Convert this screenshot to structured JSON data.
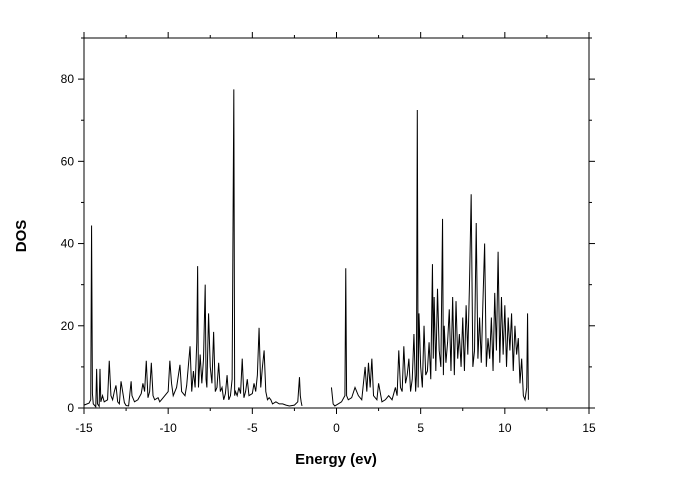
{
  "chart_data": {
    "type": "line",
    "xlabel": "Energy  (ev)",
    "ylabel": "DOS",
    "xlim": [
      -15,
      15
    ],
    "ylim": [
      0,
      90
    ],
    "xticks": [
      -15,
      -10,
      -5,
      0,
      5,
      10,
      15
    ],
    "yticks": [
      0,
      20,
      40,
      60,
      80
    ],
    "grid": false,
    "series": [
      {
        "x": [
          -15.0,
          -14.7,
          -14.6,
          -14.55,
          -14.5,
          -14.45,
          -14.3,
          -14.25,
          -14.2,
          -14.1,
          -14.05,
          -14.0,
          -13.9,
          -13.8,
          -13.6,
          -13.5,
          -13.4,
          -13.3,
          -13.2,
          -13.1,
          -13.0,
          -12.9,
          -12.8,
          -12.6,
          -12.5,
          -12.35,
          -12.3,
          -12.2,
          -12.15,
          -12.0,
          -11.8,
          -11.6,
          -11.5,
          -11.4,
          -11.3,
          -11.2,
          -11.1,
          -11.0,
          -10.9,
          -10.8,
          -10.6,
          -10.5,
          -10.4,
          -10.2,
          -10.0,
          -9.9,
          -9.8,
          -9.7,
          -9.5,
          -9.3,
          -9.2,
          -9.0,
          -8.9,
          -8.7,
          -8.6,
          -8.5,
          -8.4,
          -8.3,
          -8.25,
          -8.2,
          -8.1,
          -8.0,
          -7.9,
          -7.8,
          -7.75,
          -7.7,
          -7.6,
          -7.5,
          -7.4,
          -7.3,
          -7.2,
          -7.1,
          -7.0,
          -6.9,
          -6.8,
          -6.7,
          -6.6,
          -6.5,
          -6.4,
          -6.3,
          -6.2,
          -6.1,
          -6.05,
          -6.0,
          -5.9,
          -5.8,
          -5.7,
          -5.6,
          -5.5,
          -5.4,
          -5.3,
          -5.2,
          -5.0,
          -4.9,
          -4.8,
          -4.7,
          -4.6,
          -4.5,
          -4.4,
          -4.3,
          -4.2,
          -4.1,
          -4.0,
          -3.9,
          -3.8,
          -3.6,
          -3.4,
          -3.2,
          -3.0,
          -2.8,
          -2.5,
          -2.3,
          -2.2,
          -2.15,
          -2.1,
          -2.05
        ],
        "y": [
          0.7,
          1.2,
          2.0,
          44.4,
          3.5,
          1.0,
          0.3,
          9.5,
          1.0,
          0.4,
          9.5,
          1.5,
          3.0,
          1.5,
          2.0,
          11.5,
          3.0,
          2.0,
          4.0,
          5.5,
          1.5,
          1.0,
          6.5,
          1.3,
          0.6,
          0.5,
          2.5,
          6.5,
          3.0,
          1.5,
          2.0,
          3.5,
          6.0,
          4.0,
          11.5,
          2.5,
          4.0,
          11.0,
          3.0,
          2.0,
          2.5,
          1.5,
          2.0,
          3.0,
          4.0,
          11.5,
          6.0,
          3.0,
          5.0,
          10.5,
          4.0,
          3.0,
          5.5,
          15.0,
          4.0,
          9.0,
          5.0,
          16.0,
          34.5,
          5.0,
          13.0,
          6.0,
          12.0,
          30.0,
          7.0,
          5.0,
          23.0,
          10.0,
          6.0,
          18.5,
          4.0,
          5.0,
          11.0,
          4.0,
          5.0,
          2.0,
          3.5,
          8.0,
          2.0,
          3.0,
          7.0,
          77.5,
          3.0,
          4.0,
          3.0,
          5.0,
          3.5,
          12.0,
          2.5,
          4.0,
          7.0,
          3.0,
          3.5,
          6.0,
          4.0,
          8.0,
          19.5,
          5.0,
          10.0,
          14.0,
          4.0,
          2.0,
          2.5,
          2.0,
          1.0,
          1.5,
          1.0,
          1.0,
          0.7,
          0.5,
          0.7,
          1.5,
          7.5,
          3.0,
          1.5,
          0.5
        ]
      },
      {
        "x": [
          -0.3,
          -0.2,
          -0.1,
          0.1,
          0.3,
          0.5,
          0.55,
          0.6,
          0.7,
          0.9,
          1.1,
          1.3,
          1.5,
          1.7,
          1.8,
          1.9,
          2.0,
          2.1,
          2.2,
          2.4,
          2.5,
          2.7,
          2.9,
          3.1,
          3.3,
          3.5,
          3.6,
          3.7,
          3.8,
          3.9,
          4.0,
          4.1,
          4.2,
          4.3,
          4.4,
          4.5,
          4.6,
          4.7,
          4.75,
          4.8,
          4.85,
          4.9,
          5.0,
          5.1,
          5.2,
          5.3,
          5.4,
          5.5,
          5.6,
          5.7,
          5.75,
          5.8,
          5.9,
          6.0,
          6.1,
          6.2,
          6.3,
          6.35,
          6.4,
          6.5,
          6.6,
          6.7,
          6.8,
          6.9,
          7.0,
          7.1,
          7.2,
          7.3,
          7.4,
          7.5,
          7.6,
          7.7,
          7.8,
          7.9,
          8.0,
          8.1,
          8.2,
          8.3,
          8.4,
          8.5,
          8.6,
          8.7,
          8.8,
          8.9,
          9.0,
          9.1,
          9.2,
          9.3,
          9.4,
          9.5,
          9.6,
          9.7,
          9.8,
          9.9,
          10.0,
          10.1,
          10.2,
          10.3,
          10.4,
          10.5,
          10.6,
          10.7,
          10.8,
          10.9,
          11.0,
          11.1,
          11.2,
          11.3,
          11.35,
          11.4
        ],
        "y": [
          5.0,
          1.0,
          0.5,
          1.0,
          1.5,
          3.0,
          34.0,
          3.0,
          2.0,
          2.5,
          5.0,
          3.0,
          2.0,
          10.0,
          4.0,
          11.0,
          5.0,
          12.0,
          3.0,
          2.0,
          6.0,
          1.5,
          2.0,
          3.0,
          2.0,
          5.0,
          3.0,
          14.0,
          5.0,
          4.0,
          15.0,
          6.0,
          8.0,
          12.0,
          4.0,
          7.0,
          18.0,
          4.0,
          8.0,
          72.5,
          5.0,
          23.0,
          10.0,
          5.0,
          20.0,
          8.0,
          9.0,
          16.0,
          7.0,
          35.0,
          12.0,
          27.0,
          9.0,
          29.0,
          14.0,
          10.0,
          46.0,
          8.0,
          20.0,
          11.0,
          16.0,
          24.0,
          9.0,
          27.0,
          8.0,
          26.0,
          12.0,
          18.0,
          10.0,
          22.0,
          9.0,
          25.0,
          13.0,
          30.0,
          52.0,
          10.0,
          14.0,
          45.0,
          12.0,
          22.0,
          11.0,
          26.0,
          40.0,
          10.0,
          17.0,
          12.0,
          22.0,
          9.0,
          28.0,
          14.0,
          38.0,
          11.0,
          27.0,
          13.0,
          25.0,
          10.0,
          22.0,
          14.0,
          23.0,
          9.0,
          20.0,
          13.0,
          17.0,
          6.0,
          12.0,
          3.0,
          2.0,
          5.0,
          23.0,
          2.0
        ]
      }
    ]
  }
}
